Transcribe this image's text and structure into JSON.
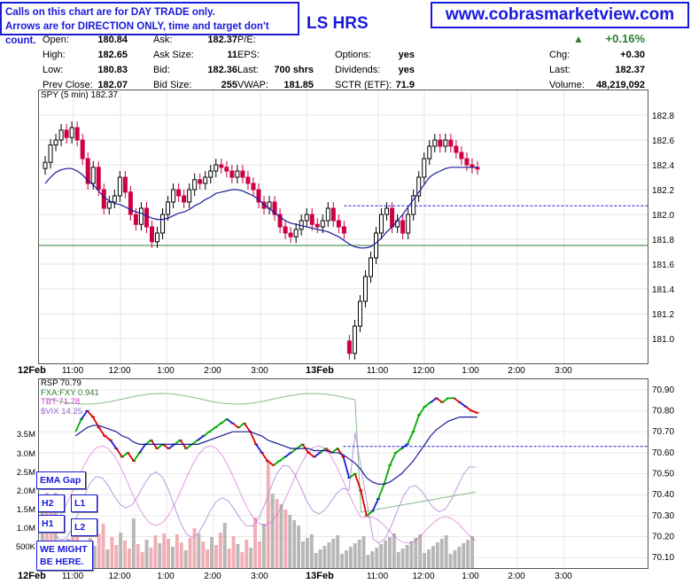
{
  "notice": {
    "line1": "Calls on this chart are for DAY TRADE only.",
    "line2": "Arrows are for DIRECTION ONLY, time and target don't count."
  },
  "website": "www.cobrasmarketview.com",
  "symbol_title": "LS HRS",
  "header": {
    "open_label": "Open:",
    "open": "180.84",
    "high_label": "High:",
    "high": "182.65",
    "low_label": "Low:",
    "low": "180.83",
    "prev_close_label": "Prev Close:",
    "prev_close": "182.07",
    "ask_label": "Ask:",
    "ask": "182.37",
    "ask_size_label": "Ask Size:",
    "ask_size": "11",
    "bid_label": "Bid:",
    "bid": "182.36",
    "bid_size_label": "Bid Size:",
    "bid_size": "255",
    "pe_label": "P/E:",
    "pe": "",
    "eps_label": "EPS:",
    "eps": "",
    "last_mid_label": "Last:",
    "last_mid": "700 shrs",
    "vwap_label": "VWAP:",
    "vwap": "181.85",
    "options_label": "Options:",
    "options": "yes",
    "dividends_label": "Dividends:",
    "dividends": "yes",
    "sctr_label": "SCTR (ETF):",
    "sctr": "71.9",
    "pct_change": "+0.16%",
    "chg_label": "Chg:",
    "chg": "+0.30",
    "last_label": "Last:",
    "last": "182.37",
    "volume_label": "Volume:",
    "volume": "48,219,092"
  },
  "colors": {
    "up_candle": "#000000",
    "down_candle": "#cc0044",
    "ema": "#1a1a99",
    "support_line": "#2e7d32",
    "dashed_line": "#1a1adb",
    "rsp_up": "#00aa00",
    "rsp_down": "#dd0000",
    "rsp_blue": "#1a1adb",
    "fxa": "#88bb88",
    "tbt": "#cc44cc",
    "vix": "#bb99dd",
    "vol_down": "#f0a0a8",
    "vol_up": "#aaaaaa"
  },
  "chart_data": [
    {
      "type": "candlestick",
      "title": "SPY (5 min) 182.37",
      "ylim": [
        180.8,
        183.0
      ],
      "y_ticks": [
        "182.8",
        "182.6",
        "182.4",
        "182.2",
        "182.0",
        "181.8",
        "181.6",
        "181.4",
        "181.2",
        "181.0"
      ],
      "x_ticks": [
        "12Feb",
        "11:00",
        "12:00",
        "1:00",
        "2:00",
        "3:00",
        "13Feb",
        "11:00",
        "12:00",
        "1:00",
        "2:00",
        "3:00"
      ],
      "hlines": [
        {
          "value": 181.75,
          "style": "solid"
        },
        {
          "value": 182.07,
          "style": "dashed"
        }
      ],
      "series": [
        {
          "name": "SPY",
          "values": [
            182.42,
            182.56,
            182.6,
            182.68,
            182.62,
            182.7,
            182.6,
            182.45,
            182.25,
            182.38,
            182.2,
            182.05,
            182.1,
            182.15,
            182.3,
            182.18,
            182.0,
            181.92,
            182.05,
            181.9,
            181.78,
            181.85,
            182.0,
            182.1,
            182.2,
            182.15,
            182.1,
            182.2,
            182.28,
            182.25,
            182.3,
            182.35,
            182.4,
            182.38,
            182.35,
            182.3,
            182.35,
            182.3,
            182.25,
            182.2,
            182.1,
            182.05,
            182.1,
            182.0,
            181.9,
            181.85,
            181.82,
            181.88,
            181.95,
            182.0,
            181.92,
            181.9,
            181.95,
            182.05,
            181.95,
            181.9,
            181.85,
            180.88,
            181.1,
            181.3,
            181.5,
            181.65,
            181.85,
            182.0,
            182.05,
            181.9,
            181.95,
            181.85,
            182.0,
            182.15,
            182.3,
            182.45,
            182.55,
            182.6,
            182.55,
            182.6,
            182.55,
            182.5,
            182.45,
            182.4,
            182.38,
            182.37
          ]
        },
        {
          "name": "EMA",
          "values": [
            182.25,
            182.3,
            182.34,
            182.36,
            182.37,
            182.37,
            182.35,
            182.32,
            182.27,
            182.24,
            182.19,
            182.14,
            182.11,
            182.09,
            182.08,
            182.06,
            182.04,
            182.02,
            182.01,
            181.99,
            181.97,
            181.96,
            181.96,
            181.97,
            181.99,
            182.01,
            182.02,
            182.04,
            182.07,
            182.09,
            182.12,
            182.14,
            182.17,
            182.18,
            182.19,
            182.2,
            182.2,
            182.19,
            182.17,
            182.15,
            182.12,
            182.08,
            182.05,
            182.01,
            181.98,
            181.95,
            181.93,
            181.92,
            181.91,
            181.9,
            181.89,
            181.88,
            181.87,
            181.86,
            181.84,
            181.82,
            181.79,
            181.76,
            181.74,
            181.73,
            181.73,
            181.74,
            181.77,
            181.81,
            181.86,
            181.9,
            181.95,
            182.0,
            182.06,
            182.12,
            182.18,
            182.24,
            182.3,
            182.33,
            182.35,
            182.37,
            182.38,
            182.38,
            182.38,
            182.38,
            182.38,
            182.38
          ]
        }
      ]
    },
    {
      "type": "line",
      "title": "RSP 70.79",
      "legend": [
        "FXA:FXY 0.941",
        "TBT 71.78",
        "$VIX 14.25"
      ],
      "ylim": [
        70.05,
        70.95
      ],
      "y_ticks": [
        "70.90",
        "70.80",
        "70.70",
        "70.60",
        "70.50",
        "70.40",
        "70.30",
        "70.20",
        "70.10"
      ],
      "volume_ticks": [
        "3.5M",
        "3.0M",
        "2.5M",
        "2.0M",
        "1.5M",
        "1.0M",
        "500K"
      ],
      "x_ticks": [
        "12Feb",
        "11:00",
        "12:00",
        "1:00",
        "2:00",
        "3:00",
        "13Feb",
        "11:00",
        "12:00",
        "1:00",
        "2:00",
        "3:00"
      ],
      "series": [
        {
          "name": "RSP",
          "values": [
            70.7,
            70.76,
            70.8,
            70.77,
            70.72,
            70.68,
            70.66,
            70.62,
            70.58,
            70.6,
            70.56,
            70.6,
            70.64,
            70.66,
            70.62,
            70.64,
            70.62,
            70.64,
            70.66,
            70.62,
            70.64,
            70.66,
            70.68,
            70.7,
            70.72,
            70.74,
            70.76,
            70.74,
            70.72,
            70.74,
            70.7,
            70.64,
            70.6,
            70.56,
            70.54,
            70.56,
            70.58,
            70.6,
            70.62,
            70.64,
            70.6,
            70.58,
            70.6,
            70.62,
            70.6,
            70.62,
            70.58,
            70.48,
            70.5,
            70.42,
            70.3,
            70.32,
            70.38,
            70.45,
            70.54,
            70.6,
            70.62,
            70.64,
            70.7,
            70.78,
            70.82,
            70.84,
            70.86,
            70.84,
            70.86,
            70.86,
            70.84,
            70.82,
            70.8,
            70.79
          ]
        },
        {
          "name": "EMA",
          "values": [
            70.68,
            70.7,
            70.72,
            70.73,
            70.73,
            70.72,
            70.71,
            70.7,
            70.68,
            70.67,
            70.65,
            70.64,
            70.64,
            70.64,
            70.64,
            70.64,
            70.64,
            70.64,
            70.64,
            70.64,
            70.64,
            70.64,
            70.65,
            70.66,
            70.67,
            70.68,
            70.69,
            70.7,
            70.7,
            70.7,
            70.7,
            70.69,
            70.68,
            70.66,
            70.65,
            70.64,
            70.63,
            70.62,
            70.62,
            70.62,
            70.62,
            70.61,
            70.61,
            70.61,
            70.6,
            70.6,
            70.59,
            70.57,
            70.55,
            70.52,
            70.48,
            70.46,
            70.45,
            70.45,
            70.46,
            70.48,
            70.5,
            70.53,
            70.56,
            70.6,
            70.64,
            70.68,
            70.71,
            70.73,
            70.75,
            70.76,
            70.77,
            70.77,
            70.77,
            70.77
          ]
        }
      ]
    }
  ],
  "labels": {
    "ema_gap": "EMA Gap",
    "h2": "H2",
    "l1": "L1",
    "h1": "H1",
    "l2": "L2",
    "might1": "WE MIGHT",
    "might2": "BE HERE.",
    "up_arrow": "▲"
  }
}
